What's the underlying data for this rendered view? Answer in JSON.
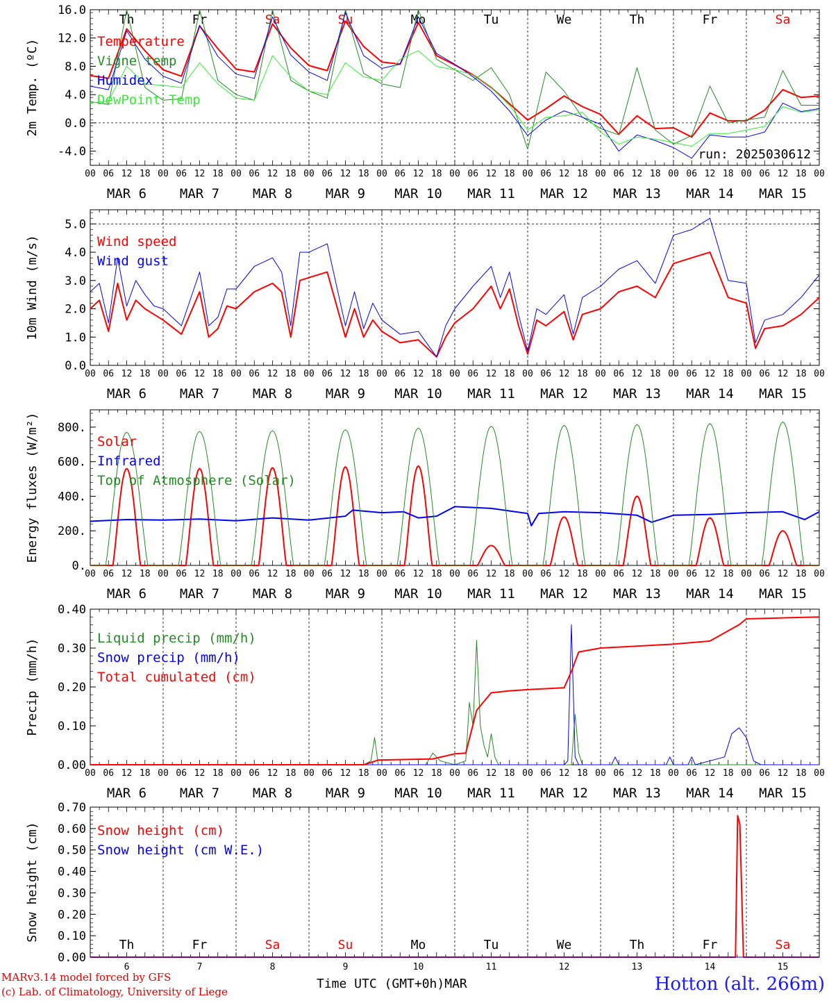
{
  "footer": {
    "model": "MARv3.14 model forced by GFS",
    "copyright": "(c) Lab. of Climatology, University of Liege",
    "time_axis_label": "Time UTC (GMT+0h)",
    "month_label": "MAR",
    "station": "Hotton (alt. 266m)"
  },
  "colors": {
    "red": "#ff0000",
    "green": "#228b22",
    "blue": "#0000ff",
    "lightgreen": "#33ee33",
    "weekend": "#ff0000",
    "weekday": "#000000"
  },
  "x_axis": {
    "hour_ticks": [
      "00",
      "06",
      "12",
      "18"
    ],
    "date_labels": [
      "MAR 6",
      "MAR 7",
      "MAR 8",
      "MAR 9",
      "MAR 10",
      "MAR 11",
      "MAR 12",
      "MAR 13",
      "MAR 14",
      "MAR 15"
    ],
    "day_names": [
      "Th",
      "Fr",
      "Sa",
      "Su",
      "Mo",
      "Tu",
      "We",
      "Th",
      "Fr",
      "Sa"
    ],
    "weekend": [
      false,
      false,
      true,
      true,
      false,
      false,
      false,
      false,
      false,
      true
    ],
    "day_numbers": [
      "6",
      "7",
      "8",
      "9",
      "10",
      "11",
      "12",
      "13",
      "14",
      "15"
    ]
  },
  "chart_data": [
    {
      "type": "line",
      "ylabel": "2m Temp. (ºC)",
      "ylim": [
        -6,
        16
      ],
      "yticks": [
        "16.0",
        "12.0",
        "8.0",
        "4.0",
        "0.0",
        "-4.0"
      ],
      "ytick_values": [
        16,
        12,
        8,
        4,
        0,
        -4
      ],
      "dashed_y": [
        0
      ],
      "annotation": "run: 2025030612",
      "x_unit": "days since MAR 6 00 UTC",
      "series": [
        {
          "name": "Temperature",
          "color": "red",
          "width": 2,
          "x": [
            0,
            0.25,
            0.5,
            0.75,
            1,
            1.25,
            1.5,
            1.75,
            2,
            2.25,
            2.5,
            2.75,
            3,
            3.25,
            3.5,
            3.75,
            4,
            4.25,
            4.5,
            4.75,
            5,
            5.25,
            5.5,
            5.75,
            6,
            6.25,
            6.5,
            6.75,
            7,
            7.25,
            7.5,
            7.75,
            8,
            8.25,
            8.5,
            8.75,
            9,
            9.25,
            9.5,
            9.75,
            10
          ],
          "y": [
            6.7,
            6.3,
            13.3,
            10.2,
            7.5,
            6.6,
            13.7,
            10.5,
            7.6,
            7.2,
            14.0,
            10.6,
            8.1,
            7.4,
            14.4,
            10.8,
            8.6,
            8.3,
            14.2,
            9.5,
            8.2,
            6.8,
            5.0,
            2.7,
            0.4,
            2.0,
            3.8,
            2.3,
            1.2,
            -1.6,
            1.0,
            -0.8,
            -0.7,
            -2.0,
            1.4,
            0.3,
            0.3,
            1.8,
            4.7,
            3.6,
            3.8
          ]
        },
        {
          "name": "Vigne temp",
          "color": "green",
          "width": 1,
          "x": [
            0,
            0.25,
            0.5,
            0.75,
            1,
            1.25,
            1.5,
            1.75,
            2,
            2.25,
            2.5,
            2.75,
            3,
            3.25,
            3.5,
            3.75,
            4,
            4.25,
            4.5,
            4.75,
            5,
            5.25,
            5.5,
            5.75,
            6,
            6.25,
            6.5,
            6.75,
            7,
            7.25,
            7.5,
            7.75,
            8,
            8.25,
            8.5,
            8.75,
            9,
            9.25,
            9.5,
            9.75,
            10
          ],
          "y": [
            3.0,
            2.6,
            16.0,
            5.0,
            3.2,
            3.4,
            16.0,
            6.0,
            4.0,
            3.2,
            16.0,
            6.0,
            4.5,
            3.5,
            16.0,
            7.0,
            5.5,
            5.0,
            16.0,
            9.0,
            7.5,
            6.0,
            7.8,
            4.0,
            -3.7,
            7.2,
            4.5,
            0.8,
            -0.8,
            -1.7,
            7.8,
            -1.0,
            -3.0,
            -1.8,
            5.2,
            0.0,
            0.4,
            0.8,
            7.4,
            2.5,
            2.5
          ]
        },
        {
          "name": "Humidex",
          "color": "blue",
          "width": 1,
          "x": [
            0,
            0.25,
            0.5,
            0.75,
            1,
            1.25,
            1.5,
            1.75,
            2,
            2.25,
            2.5,
            2.75,
            3,
            3.25,
            3.5,
            3.75,
            4,
            4.25,
            4.5,
            4.75,
            5,
            5.25,
            5.5,
            5.75,
            6,
            6.25,
            6.5,
            6.75,
            7,
            7.25,
            7.5,
            7.75,
            8,
            8.25,
            8.5,
            8.75,
            9,
            9.25,
            9.5,
            9.75,
            10
          ],
          "y": [
            5.2,
            4.7,
            13.0,
            9.0,
            6.6,
            5.6,
            13.8,
            9.4,
            6.9,
            6.3,
            15.0,
            9.6,
            7.2,
            6.0,
            15.6,
            9.5,
            7.7,
            8.3,
            15.0,
            9.8,
            8.3,
            6.5,
            4.5,
            1.7,
            -1.8,
            0.4,
            1.7,
            0.8,
            -0.2,
            -4.0,
            -1.7,
            -2.5,
            -3.5,
            -5.0,
            -1.7,
            -2.0,
            -2.0,
            -1.3,
            2.8,
            1.6,
            2.0
          ]
        },
        {
          "name": "DewPoint Temp",
          "color": "lightgreen",
          "width": 1,
          "x": [
            0,
            0.25,
            0.5,
            0.75,
            1,
            1.25,
            1.5,
            1.75,
            2,
            2.25,
            2.5,
            2.75,
            3,
            3.25,
            3.5,
            3.75,
            4,
            4.25,
            4.5,
            4.75,
            5,
            5.25,
            5.5,
            5.75,
            6,
            6.25,
            6.5,
            6.75,
            7,
            7.25,
            7.5,
            7.75,
            8,
            8.25,
            8.5,
            8.75,
            9,
            9.25,
            9.5,
            9.75,
            10
          ],
          "y": [
            2.8,
            3.1,
            8.0,
            5.5,
            5.3,
            5.0,
            8.5,
            5.5,
            3.5,
            3.2,
            9.5,
            6.5,
            4.5,
            4.0,
            8.5,
            6.5,
            6.0,
            9.0,
            10.2,
            8.0,
            7.5,
            6.8,
            5.0,
            2.5,
            -1.0,
            0.8,
            1.0,
            1.5,
            -1.3,
            -3.0,
            -2.0,
            -2.3,
            -2.8,
            -3.3,
            -1.5,
            -1.5,
            -1.0,
            -0.5,
            2.3,
            1.5,
            1.8
          ]
        }
      ],
      "legend": [
        "Temperature",
        "Vigne temp",
        "Humidex",
        "DewPoint Temp"
      ],
      "day_labels_inside": "top"
    },
    {
      "type": "line",
      "ylabel": "10m Wind (m/s)",
      "ylim": [
        0,
        5.5
      ],
      "yticks": [
        "5.0",
        "4.0",
        "3.0",
        "2.0",
        "1.0",
        "0.0"
      ],
      "ytick_values": [
        5,
        4,
        3,
        2,
        1,
        0
      ],
      "dashed_y": [
        5
      ],
      "x_unit": "days since MAR 6 00 UTC",
      "series": [
        {
          "name": "Wind speed",
          "color": "red",
          "width": 2,
          "x": [
            0,
            0.125,
            0.25,
            0.375,
            0.5,
            0.625,
            0.75,
            0.875,
            1,
            1.25,
            1.5,
            1.625,
            1.75,
            1.875,
            2,
            2.25,
            2.5,
            2.625,
            2.75,
            2.875,
            3,
            3.25,
            3.5,
            3.625,
            3.75,
            3.875,
            4,
            4.25,
            4.5,
            4.75,
            4.875,
            5,
            5.25,
            5.5,
            5.625,
            5.75,
            5.875,
            6,
            6.125,
            6.25,
            6.5,
            6.625,
            6.75,
            7,
            7.25,
            7.5,
            7.75,
            8,
            8.25,
            8.5,
            8.75,
            9,
            9.125,
            9.25,
            9.5,
            9.75,
            10
          ],
          "y": [
            2.0,
            2.3,
            1.2,
            2.9,
            1.6,
            2.3,
            2.0,
            1.8,
            1.6,
            1.1,
            2.6,
            1.0,
            1.3,
            2.1,
            2.0,
            2.6,
            2.9,
            2.6,
            1.0,
            3.0,
            3.1,
            3.3,
            1.0,
            2.0,
            1.0,
            1.6,
            1.2,
            0.8,
            0.9,
            0.3,
            1.0,
            1.5,
            2.0,
            2.8,
            2.0,
            2.7,
            1.4,
            0.4,
            1.6,
            1.4,
            1.9,
            0.9,
            1.8,
            2.0,
            2.6,
            2.8,
            2.4,
            3.6,
            3.8,
            4.0,
            2.4,
            2.2,
            0.6,
            1.3,
            1.4,
            1.8,
            2.4
          ]
        },
        {
          "name": "Wind gust",
          "color": "blue",
          "width": 1,
          "x": [
            0,
            0.125,
            0.25,
            0.375,
            0.5,
            0.625,
            0.75,
            0.875,
            1,
            1.25,
            1.5,
            1.625,
            1.75,
            1.875,
            2,
            2.25,
            2.5,
            2.625,
            2.75,
            2.875,
            3,
            3.25,
            3.5,
            3.625,
            3.75,
            3.875,
            4,
            4.25,
            4.5,
            4.75,
            4.875,
            5,
            5.25,
            5.5,
            5.625,
            5.75,
            5.875,
            6,
            6.125,
            6.25,
            6.5,
            6.625,
            6.75,
            7,
            7.25,
            7.5,
            7.75,
            8,
            8.25,
            8.5,
            8.75,
            9,
            9.125,
            9.25,
            9.5,
            9.75,
            10
          ],
          "y": [
            2.6,
            2.9,
            1.5,
            3.8,
            2.1,
            3.0,
            2.5,
            2.1,
            2.0,
            1.4,
            3.3,
            1.4,
            1.7,
            2.7,
            2.7,
            3.5,
            3.8,
            3.3,
            1.4,
            4.0,
            4.0,
            4.3,
            1.4,
            2.6,
            1.3,
            2.2,
            1.6,
            1.1,
            1.2,
            0.3,
            1.4,
            2.0,
            2.8,
            3.5,
            2.4,
            3.3,
            1.8,
            0.5,
            2.0,
            1.8,
            2.5,
            1.1,
            2.4,
            2.8,
            3.4,
            3.7,
            2.9,
            4.6,
            4.8,
            5.2,
            3.0,
            2.9,
            0.8,
            1.6,
            1.8,
            2.4,
            3.2
          ]
        }
      ],
      "legend": [
        "Wind speed",
        "Wind gust"
      ]
    },
    {
      "type": "line",
      "ylabel": "Energy fluxes (W/m²)",
      "ylim": [
        0,
        900
      ],
      "yticks": [
        "800.",
        "600.",
        "400.",
        "200.",
        "0."
      ],
      "ytick_values": [
        800,
        600,
        400,
        200,
        0
      ],
      "x_unit": "days since MAR 6 00 UTC",
      "series": [
        {
          "name": "Solar",
          "color": "red",
          "width": 2,
          "diurnal": true,
          "peaks": [
            560,
            560,
            565,
            570,
            575,
            115,
            280,
            400,
            275,
            200
          ]
        },
        {
          "name": "Infrared",
          "color": "blue",
          "width": 2,
          "x": [
            0,
            0.5,
            1,
            1.5,
            2,
            2.5,
            3,
            3.5,
            3.6,
            4,
            4.3,
            4.5,
            4.75,
            5,
            5.5,
            6,
            6.05,
            6.15,
            6.5,
            7,
            7.5,
            7.7,
            8,
            8.5,
            9,
            9.5,
            9.8,
            10
          ],
          "y": [
            255,
            265,
            262,
            268,
            258,
            275,
            262,
            285,
            320,
            305,
            310,
            275,
            285,
            340,
            330,
            300,
            230,
            300,
            310,
            305,
            290,
            250,
            290,
            295,
            305,
            310,
            265,
            310
          ]
        },
        {
          "name": "Top of Atmosphere (Solar)",
          "color": "green",
          "width": 1,
          "diurnal": true,
          "peaks": [
            770,
            775,
            780,
            785,
            795,
            805,
            810,
            815,
            820,
            830
          ]
        }
      ],
      "legend": [
        "Solar",
        "Infrared",
        "Top of Atmosphere (Solar)"
      ]
    },
    {
      "type": "line",
      "ylabel": "Precip (mm/h)",
      "ylim": [
        0,
        0.4
      ],
      "yticks": [
        "0.40",
        "0.30",
        "0.20",
        "0.10",
        "0.00"
      ],
      "ytick_values": [
        0.4,
        0.3,
        0.2,
        0.1,
        0
      ],
      "x_unit": "days since MAR 6 00 UTC",
      "series": [
        {
          "name": "Liquid precip (mm/h)",
          "color": "green",
          "width": 1,
          "x": [
            0,
            3.75,
            3.85,
            3.9,
            3.95,
            4.6,
            4.7,
            4.8,
            5.0,
            5.15,
            5.2,
            5.25,
            5.3,
            5.35,
            5.4,
            5.45,
            5.5,
            5.55,
            5.6,
            5.75,
            6.6,
            6.65,
            6.7,
            6.75,
            10
          ],
          "y": [
            0,
            0,
            0.01,
            0.07,
            0,
            0,
            0.03,
            0.01,
            0,
            0.01,
            0.16,
            0.1,
            0.32,
            0.1,
            0.05,
            0.02,
            0.08,
            0.02,
            0,
            0,
            0,
            0.13,
            0.03,
            0,
            0
          ]
        },
        {
          "name": "Snow precip (mm/h)",
          "color": "blue",
          "width": 1,
          "x": [
            0,
            6.5,
            6.55,
            6.6,
            6.65,
            6.7,
            6.75,
            6.8,
            7.15,
            7.2,
            7.25,
            7.9,
            7.95,
            8.0,
            8.2,
            8.25,
            8.3,
            8.7,
            8.8,
            8.9,
            9.0,
            9.1,
            9.2,
            10
          ],
          "y": [
            0,
            0,
            0.01,
            0.36,
            0.02,
            0,
            0,
            0,
            0,
            0.02,
            0,
            0,
            0.02,
            0,
            0,
            0.02,
            0,
            0.02,
            0.08,
            0.095,
            0.07,
            0.01,
            0,
            0
          ]
        },
        {
          "name": "Total cumulated (cm)",
          "color": "red",
          "width": 2,
          "x": [
            0,
            3.75,
            3.95,
            4.7,
            5.0,
            5.15,
            5.3,
            5.5,
            5.75,
            6.0,
            6.5,
            6.6,
            6.7,
            7.0,
            8.0,
            8.5,
            8.9,
            9.0,
            10
          ],
          "y": [
            0,
            0,
            0.012,
            0.015,
            0.028,
            0.03,
            0.14,
            0.185,
            0.19,
            0.193,
            0.198,
            0.24,
            0.29,
            0.3,
            0.31,
            0.318,
            0.36,
            0.375,
            0.38
          ]
        }
      ],
      "legend": [
        "Liquid precip (mm/h)",
        "Snow precip (mm/h)",
        "Total cumulated (cm)"
      ]
    },
    {
      "type": "line",
      "ylabel": "Snow height (cm)",
      "ylim": [
        0,
        0.7
      ],
      "yticks": [
        "0.70",
        "0.60",
        "0.50",
        "0.40",
        "0.30",
        "0.20",
        "0.10",
        "0.00"
      ],
      "ytick_values": [
        0.7,
        0.6,
        0.5,
        0.4,
        0.3,
        0.2,
        0.1,
        0
      ],
      "x_unit": "days since MAR 6 00 UTC",
      "series": [
        {
          "name": "Snow height (cm)",
          "color": "red",
          "width": 2,
          "x": [
            0,
            8.85,
            8.88,
            8.91,
            8.96,
            10
          ],
          "y": [
            0,
            0,
            0.66,
            0.62,
            0,
            0
          ]
        },
        {
          "name": "Snow height (cm W.E.)",
          "color": "blue",
          "width": 1,
          "x": [
            0,
            10
          ],
          "y": [
            0,
            0
          ]
        }
      ],
      "legend": [
        "Snow height (cm)",
        "Snow height (cm W.E.)"
      ],
      "day_labels_inside": "bottom"
    }
  ]
}
